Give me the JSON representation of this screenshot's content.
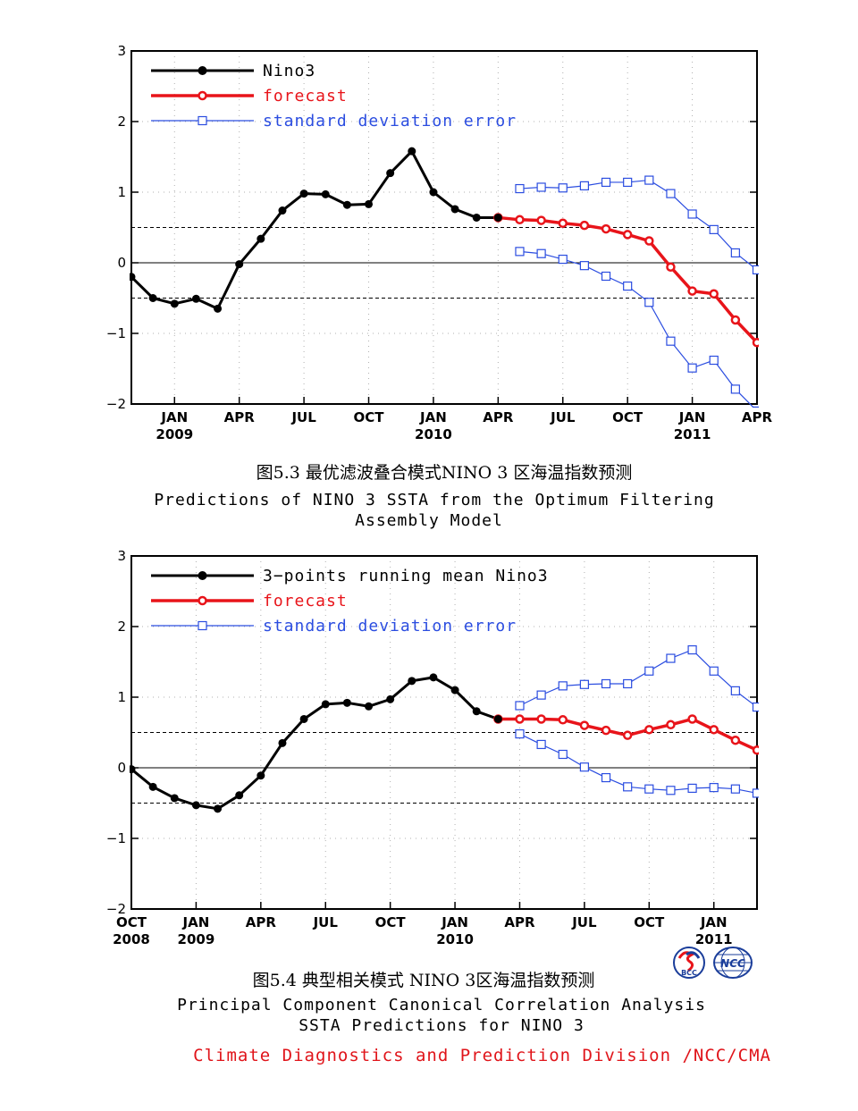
{
  "chart_data": [
    {
      "type": "line",
      "ylim": [
        -2,
        3
      ],
      "yticks": [
        "3",
        "2",
        "1",
        "0",
        "−1",
        "−2"
      ],
      "xtick_months": [
        "JAN",
        "APR",
        "JUL",
        "OCT",
        "JAN",
        "APR",
        "JUL",
        "OCT",
        "JAN",
        "APR"
      ],
      "xtick_years": [
        "2009",
        "",
        "",
        "",
        "2010",
        "",
        "",
        "",
        "2011",
        ""
      ],
      "reference_lines": [
        0.5,
        0,
        -0.5
      ],
      "legend": [
        "Nino3",
        "forecast",
        "standard deviation error"
      ],
      "caption_cn": "图5.3  最优滤波叠合模式NINO 3 区海温指数预测",
      "caption_en": [
        "Predictions of NINO 3 SSTA from the Optimum Filtering",
        "Assembly Model"
      ],
      "observed": [
        -0.2,
        -0.5,
        -0.58,
        -0.51,
        -0.65,
        -0.02,
        0.34,
        0.74,
        0.98,
        0.97,
        0.82,
        0.83,
        1.27,
        1.58,
        1.0,
        0.76,
        0.64,
        0.64
      ],
      "forecast": [
        0.64,
        0.61,
        0.6,
        0.56,
        0.53,
        0.48,
        0.4,
        0.31,
        -0.06,
        -0.4,
        -0.44,
        -0.81,
        -1.13
      ],
      "upper": [
        1.05,
        1.07,
        1.06,
        1.09,
        1.14,
        1.14,
        1.17,
        0.98,
        0.69,
        0.47,
        0.14,
        -0.1
      ],
      "lower": [
        0.16,
        0.13,
        0.05,
        -0.04,
        -0.19,
        -0.33,
        -0.56,
        -1.11,
        -1.49,
        -1.38,
        -1.79,
        -2.1
      ],
      "colors": {
        "observed": "#000000",
        "forecast": "#e8141a",
        "error": "#2b4de0"
      }
    },
    {
      "type": "line",
      "ylim": [
        -2,
        3
      ],
      "yticks": [
        "3",
        "2",
        "1",
        "0",
        "−1",
        "−2"
      ],
      "xtick_months": [
        "OCT",
        "JAN",
        "APR",
        "JUL",
        "OCT",
        "JAN",
        "APR",
        "JUL",
        "OCT",
        "JAN"
      ],
      "xtick_years": [
        "2008",
        "2009",
        "",
        "",
        "",
        "2010",
        "",
        "",
        "",
        "2011"
      ],
      "reference_lines": [
        0.5,
        0,
        -0.5
      ],
      "legend": [
        "3−points running mean Nino3",
        "forecast",
        "standard deviation error"
      ],
      "caption_cn": "图5.4  典型相关模式 NINO 3区海温指数预测",
      "caption_en": [
        "Principal Component Canonical Correlation Analysis",
        "SSTA Predictions for NINO 3"
      ],
      "observed": [
        -0.02,
        -0.27,
        -0.43,
        -0.53,
        -0.58,
        -0.39,
        -0.11,
        0.35,
        0.69,
        0.9,
        0.92,
        0.87,
        0.97,
        1.23,
        1.28,
        1.1,
        0.8,
        0.69
      ],
      "forecast": [
        0.69,
        0.69,
        0.69,
        0.68,
        0.6,
        0.53,
        0.46,
        0.54,
        0.61,
        0.69,
        0.54,
        0.39,
        0.25
      ],
      "upper": [
        0.88,
        1.03,
        1.16,
        1.18,
        1.19,
        1.19,
        1.37,
        1.55,
        1.67,
        1.37,
        1.09,
        0.86
      ],
      "lower": [
        0.48,
        0.33,
        0.19,
        0.01,
        -0.14,
        -0.27,
        -0.3,
        -0.32,
        -0.29,
        -0.28,
        -0.3,
        -0.36
      ],
      "colors": {
        "observed": "#000000",
        "forecast": "#e8141a",
        "error": "#2b4de0"
      }
    }
  ],
  "footer": "Climate Diagnostics and Prediction Division /NCC/CMA",
  "logos": [
    "BCC",
    "NCC"
  ]
}
